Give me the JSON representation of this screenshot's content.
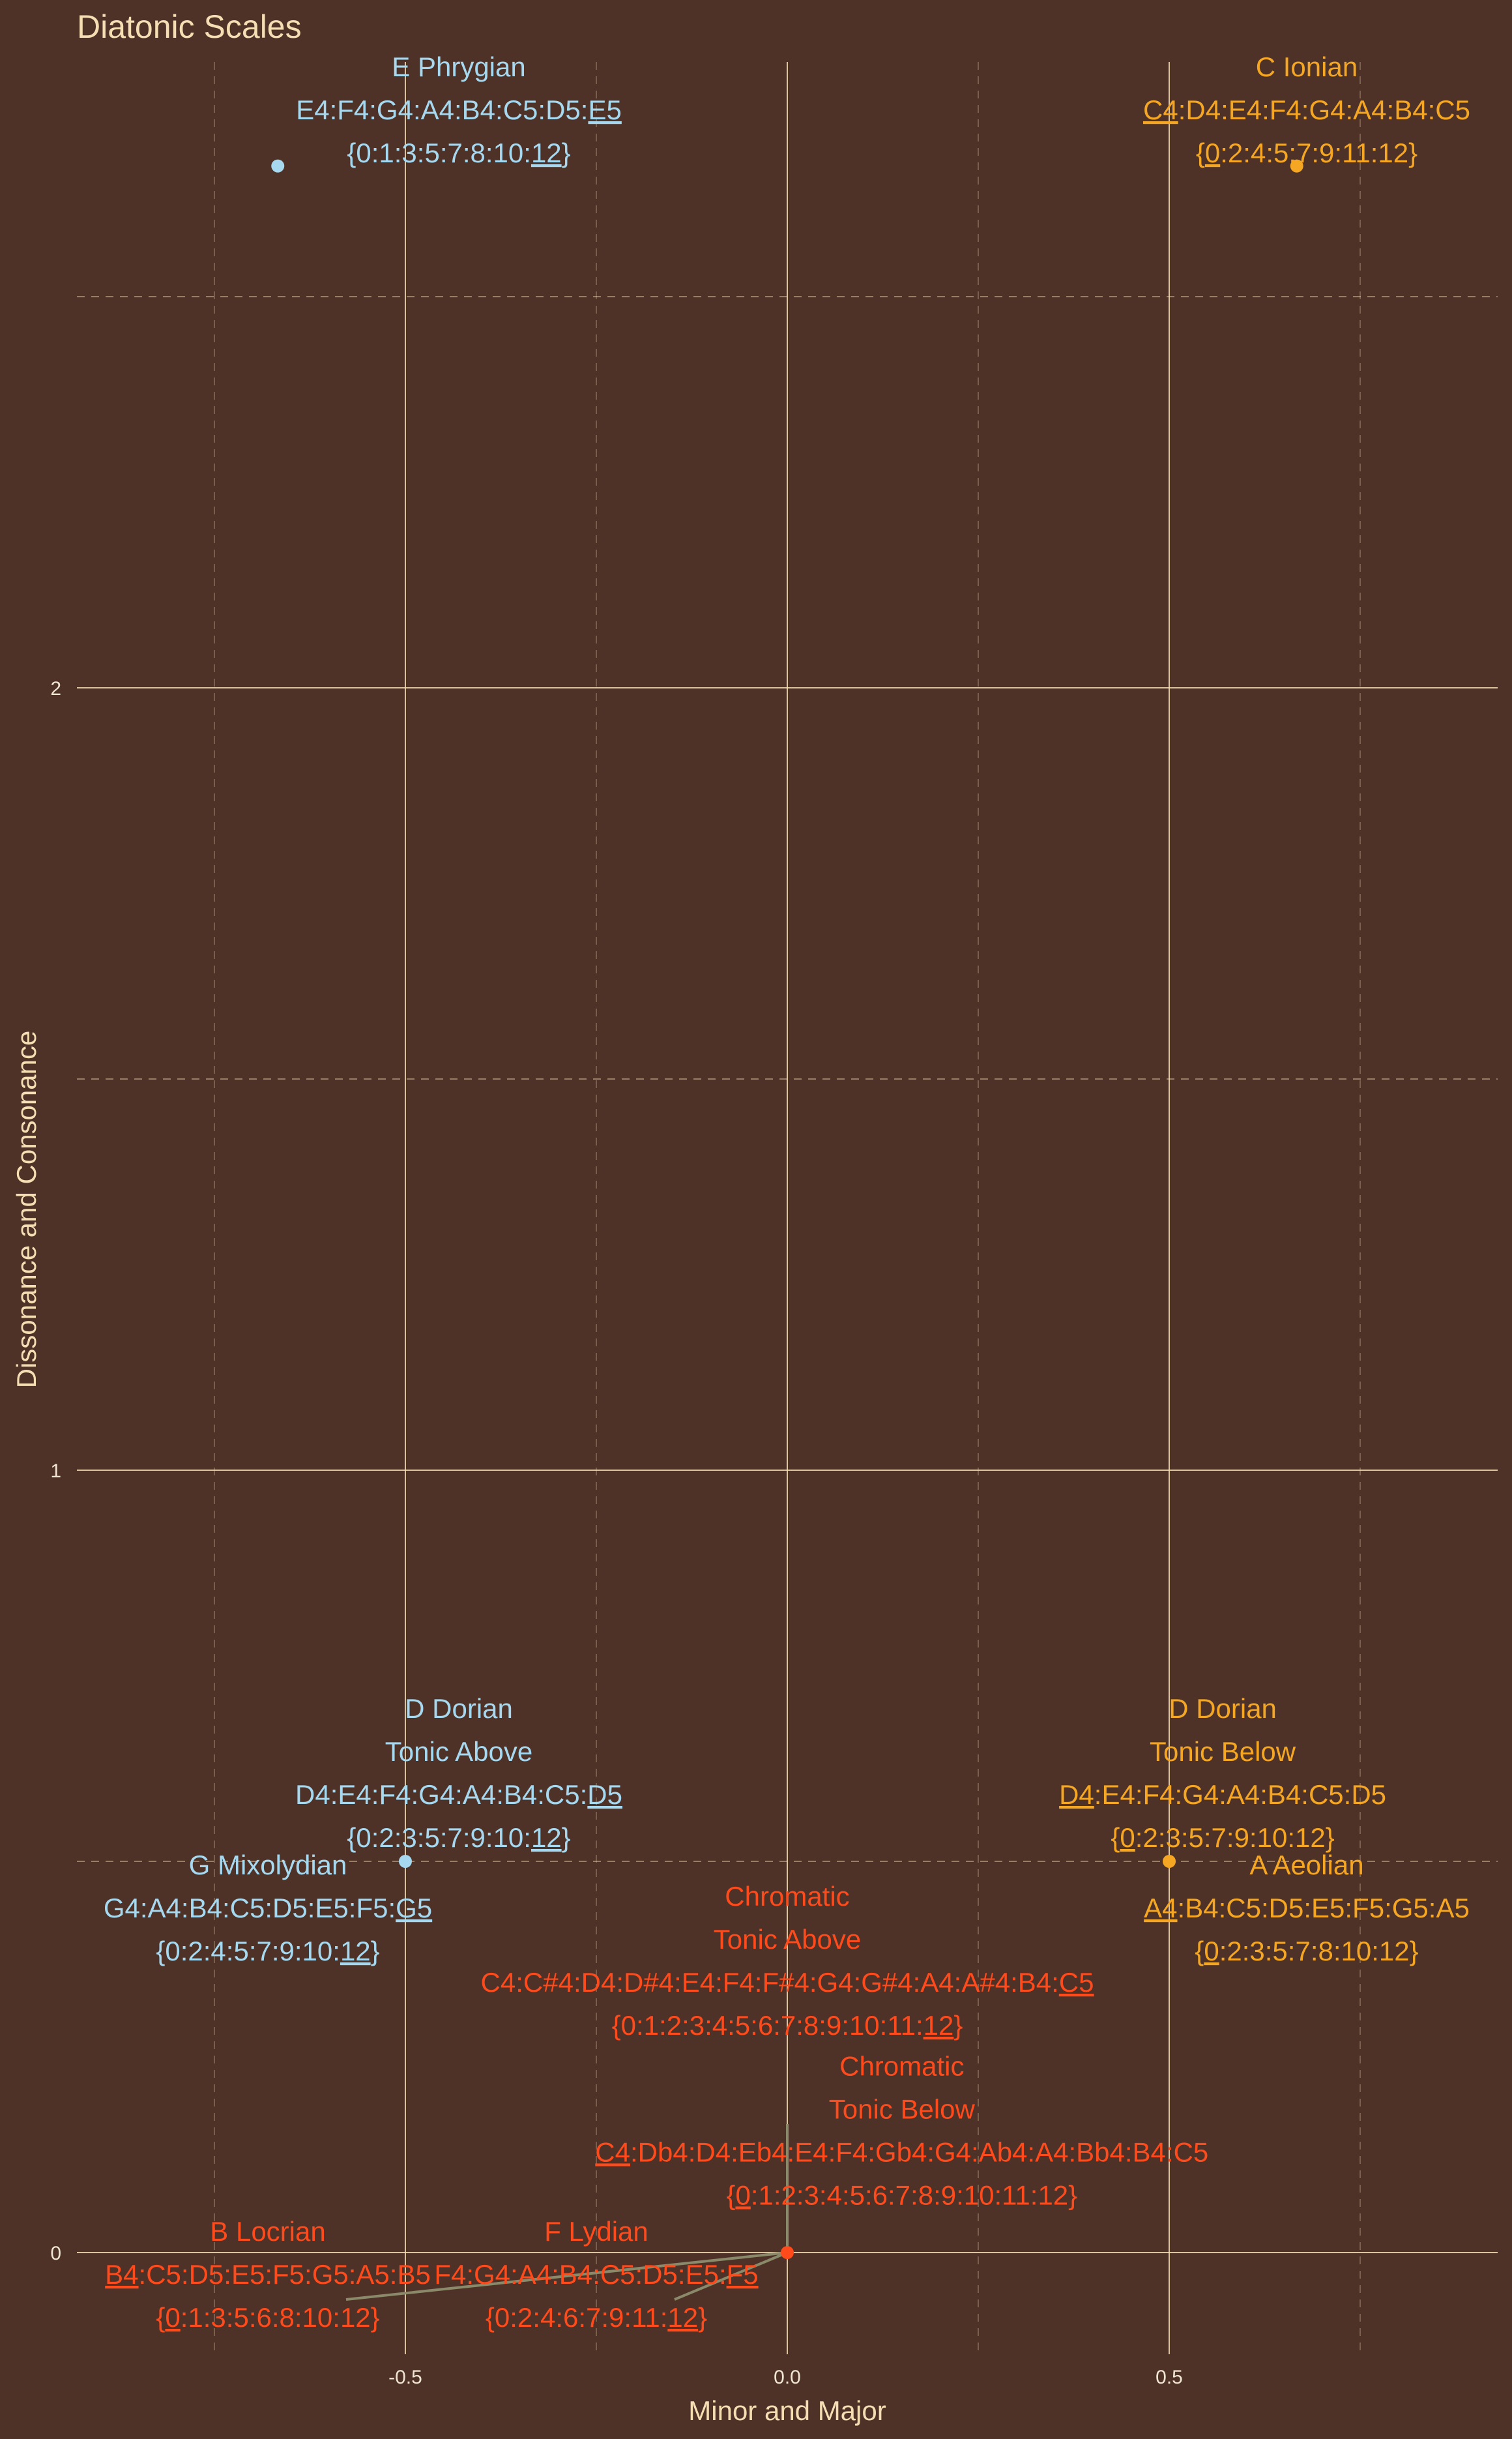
{
  "chart_data": {
    "type": "scatter",
    "title": "Diatonic Scales",
    "xlabel": "Minor and Major",
    "ylabel": "Dissonance and Consonance",
    "xlim": [
      -0.93,
      0.93
    ],
    "ylim": [
      -0.13,
      2.8
    ],
    "x_ticks": [
      -0.5,
      0.0,
      0.5
    ],
    "x_tick_labels": [
      "-0.5",
      "0.0",
      "0.5"
    ],
    "y_ticks": [
      0,
      1,
      2
    ],
    "y_tick_labels": [
      "0",
      "1",
      "2"
    ],
    "grid": true,
    "colors": {
      "background": "#4e3227",
      "grid": "#f5deb3",
      "text": "#f5deb3",
      "minor": "#a6d8f0",
      "major": "#f5a623",
      "neutral": "#ff4a1c",
      "segment": "#8a8a6a"
    },
    "points": [
      {
        "name": "E Phrygian",
        "x": -0.667,
        "y": 2.667,
        "color": "#a6d8f0",
        "notes": "E4:F4:G4:A4:B4:C5:D5:E5",
        "notes_ul": [
          7
        ],
        "intervals": "{0:1:3:5:7:8:10:12}",
        "intervals_ul": [
          7
        ],
        "lx": -0.43,
        "ly": 2.68,
        "ltop": true
      },
      {
        "name": "C Ionian",
        "x": 0.667,
        "y": 2.667,
        "color": "#f5a623",
        "notes": "C4:D4:E4:F4:G4:A4:B4:C5",
        "notes_ul": [
          0
        ],
        "intervals": "{0:2:4:5:7:9:11:12}",
        "intervals_ul": [
          0
        ],
        "lx": 0.68,
        "ly": 2.68,
        "ltop": true
      },
      {
        "name": "D Dorian\nTonic Above",
        "x": -0.5,
        "y": 0.5,
        "color": "#a6d8f0",
        "notes": "D4:E4:F4:G4:A4:B4:C5:D5",
        "notes_ul": [
          7
        ],
        "intervals": "{0:2:3:5:7:9:10:12}",
        "intervals_ul": [
          7
        ],
        "lx": -0.43,
        "ly": 0.5,
        "ltop": false
      },
      {
        "name": "D Dorian\nTonic Below",
        "x": 0.5,
        "y": 0.5,
        "color": "#f5a623",
        "notes": "D4:E4:F4:G4:A4:B4:C5:D5",
        "notes_ul": [
          0
        ],
        "intervals": "{0:2:3:5:7:9:10:12}",
        "intervals_ul": [
          0
        ],
        "lx": 0.57,
        "ly": 0.5,
        "ltop": false
      },
      {
        "name": "G Mixolydian",
        "x": -0.5,
        "y": 0.5,
        "color": "#a6d8f0",
        "notes": "G4:A4:B4:C5:D5:E5:F5:G5",
        "notes_ul": [
          7
        ],
        "intervals": "{0:2:4:5:7:9:10:12}",
        "intervals_ul": [
          7
        ],
        "lx": -0.68,
        "ly": 0.355,
        "ltop": false,
        "nopoint": true
      },
      {
        "name": "A Aeolian",
        "x": 0.5,
        "y": 0.5,
        "color": "#f5a623",
        "notes": "A4:B4:C5:D5:E5:F5:G5:A5",
        "notes_ul": [
          0
        ],
        "intervals": "{0:2:3:5:7:8:10:12}",
        "intervals_ul": [
          0
        ],
        "lx": 0.68,
        "ly": 0.355,
        "ltop": false,
        "nopoint": true
      },
      {
        "name": "Chromatic\nTonic Above",
        "x": 0.0,
        "y": 0.0,
        "color": "#ff4a1c",
        "notes": "C4:C#4:D4:D#4:E4:F4:F#4:G4:G#4:A4:A#4:B4:C5",
        "notes_ul": [
          12
        ],
        "intervals": "{0:1:2:3:4:5:6:7:8:9:10:11:12}",
        "intervals_ul": [
          12
        ],
        "lx": 0.0,
        "ly": 0.26,
        "ltop": false,
        "nopoint": true
      },
      {
        "name": "Chromatic\nTonic Below",
        "x": 0.0,
        "y": 0.0,
        "color": "#ff4a1c",
        "notes": "C4:Db4:D4:Eb4:E4:F4:Gb4:G4:Ab4:A4:Bb4:B4:C5",
        "notes_ul": [
          0
        ],
        "intervals": "{0:1:2:3:4:5:6:7:8:9:10:11:12}",
        "intervals_ul": [
          0
        ],
        "lx": 0.15,
        "ly": 0.043,
        "ltop": false
      },
      {
        "name": "B Locrian",
        "x": 0.0,
        "y": 0.0,
        "color": "#ff4a1c",
        "notes": "B4:C5:D5:E5:F5:G5:A5:B5",
        "notes_ul": [
          0
        ],
        "intervals": "{0:1:3:5:6:8:10:12}",
        "intervals_ul": [
          0
        ],
        "lx": -0.68,
        "ly": -0.06,
        "ltop": false,
        "nopoint": true,
        "seg": true
      },
      {
        "name": "F Lydian",
        "x": 0.0,
        "y": 0.0,
        "color": "#ff4a1c",
        "notes": "F4:G4:A4:B4:C5:D5:E5:F5",
        "notes_ul": [
          7
        ],
        "intervals": "{0:2:4:6:7:9:11:12}",
        "intervals_ul": [
          7
        ],
        "lx": -0.25,
        "ly": -0.06,
        "ltop": false,
        "nopoint": true,
        "seg": true
      }
    ]
  }
}
